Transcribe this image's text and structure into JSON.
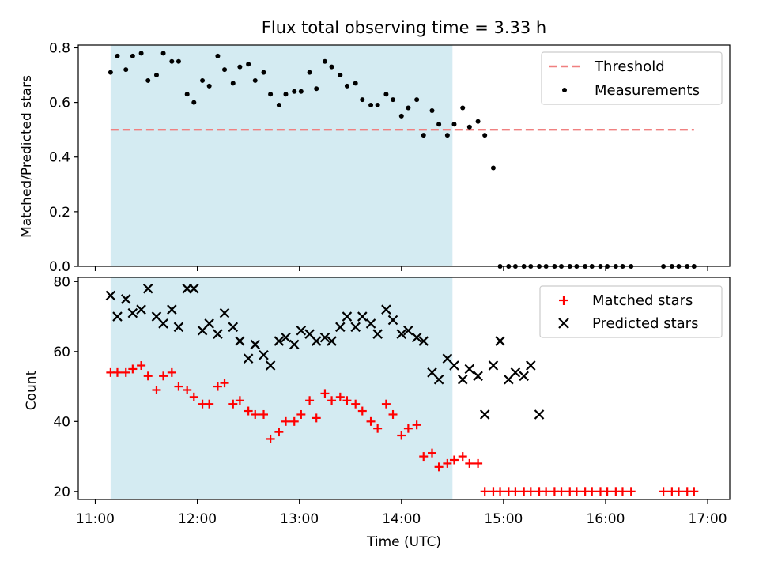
{
  "chart_data": [
    {
      "type": "scatter",
      "title": "Flux total observing time = 3.33 h",
      "ylabel": "Matched/Predicted stars",
      "xlabel": "",
      "x_ticks": [
        "11:00",
        "12:00",
        "13:00",
        "14:00",
        "15:00",
        "16:00",
        "17:00"
      ],
      "y_ticks": [
        "0.0",
        "0.2",
        "0.4",
        "0.6",
        "0.8"
      ],
      "ylim": [
        0,
        0.81
      ],
      "xlim": [
        "10:50",
        "17:13"
      ],
      "shaded_region": {
        "x0": "11:09",
        "x1": "14:30",
        "color": "#add8e6"
      },
      "threshold": {
        "name": "Threshold",
        "y": 0.5,
        "x0": "11:09",
        "x1": "16:52",
        "color": "#f08080"
      },
      "legend": "top-right",
      "series": [
        {
          "name": "Measurements",
          "color": "#000000",
          "marker": "dot",
          "x": [
            "11:09",
            "11:13",
            "11:18",
            "11:22",
            "11:27",
            "11:31",
            "11:36",
            "11:40",
            "11:45",
            "11:49",
            "11:54",
            "11:58",
            "12:03",
            "12:07",
            "12:12",
            "12:16",
            "12:21",
            "12:25",
            "12:30",
            "12:34",
            "12:39",
            "12:43",
            "12:48",
            "12:52",
            "12:57",
            "13:01",
            "13:06",
            "13:10",
            "13:15",
            "13:19",
            "13:24",
            "13:28",
            "13:33",
            "13:37",
            "13:42",
            "13:46",
            "13:51",
            "13:55",
            "14:00",
            "14:04",
            "14:09",
            "14:13",
            "14:18",
            "14:22",
            "14:27",
            "14:31",
            "14:36",
            "14:40",
            "14:45",
            "14:49",
            "14:54",
            "14:58",
            "15:03",
            "15:07",
            "15:12",
            "15:16",
            "15:21",
            "15:25",
            "15:30",
            "15:34",
            "15:39",
            "15:43",
            "15:48",
            "15:52",
            "15:57",
            "16:01",
            "16:06",
            "16:10",
            "16:15",
            "16:34",
            "16:39",
            "16:43",
            "16:48",
            "16:52"
          ],
          "y": [
            0.71,
            0.77,
            0.72,
            0.77,
            0.78,
            0.68,
            0.7,
            0.78,
            0.75,
            0.75,
            0.63,
            0.6,
            0.68,
            0.66,
            0.77,
            0.72,
            0.67,
            0.73,
            0.74,
            0.68,
            0.71,
            0.63,
            0.59,
            0.63,
            0.64,
            0.64,
            0.71,
            0.65,
            0.75,
            0.73,
            0.7,
            0.66,
            0.67,
            0.61,
            0.59,
            0.59,
            0.63,
            0.61,
            0.55,
            0.58,
            0.61,
            0.48,
            0.57,
            0.52,
            0.48,
            0.52,
            0.58,
            0.51,
            0.53,
            0.48,
            0.36,
            0.0,
            0.0,
            0.0,
            0.0,
            0.0,
            0.0,
            0.0,
            0.0,
            0.0,
            0.0,
            0.0,
            0.0,
            0.0,
            0.0,
            0.0,
            0.0,
            0.0,
            0.0,
            0.0,
            0.0,
            0.0,
            0.0,
            0.0
          ]
        }
      ]
    },
    {
      "type": "scatter",
      "title": "",
      "ylabel": "Count",
      "xlabel": "Time (UTC)",
      "x_ticks": [
        "11:00",
        "12:00",
        "13:00",
        "14:00",
        "15:00",
        "16:00",
        "17:00"
      ],
      "y_ticks": [
        "20",
        "40",
        "60",
        "80"
      ],
      "ylim": [
        17.7,
        81.2
      ],
      "xlim": [
        "10:50",
        "17:13"
      ],
      "shaded_region": {
        "x0": "11:09",
        "x1": "14:30",
        "color": "#add8e6"
      },
      "legend": "top-right",
      "series": [
        {
          "name": "Matched stars",
          "color": "#ff0000",
          "marker": "plus",
          "x": [
            "11:09",
            "11:13",
            "11:18",
            "11:22",
            "11:27",
            "11:31",
            "11:36",
            "11:40",
            "11:45",
            "11:49",
            "11:54",
            "11:58",
            "12:03",
            "12:07",
            "12:12",
            "12:16",
            "12:21",
            "12:25",
            "12:30",
            "12:34",
            "12:39",
            "12:43",
            "12:48",
            "12:52",
            "12:57",
            "13:01",
            "13:06",
            "13:10",
            "13:15",
            "13:19",
            "13:24",
            "13:28",
            "13:33",
            "13:37",
            "13:42",
            "13:46",
            "13:51",
            "13:55",
            "14:00",
            "14:04",
            "14:09",
            "14:13",
            "14:18",
            "14:22",
            "14:27",
            "14:31",
            "14:36",
            "14:40",
            "14:45",
            "14:49",
            "14:54",
            "14:58",
            "15:03",
            "15:07",
            "15:12",
            "15:16",
            "15:21",
            "15:25",
            "15:30",
            "15:34",
            "15:39",
            "15:43",
            "15:48",
            "15:52",
            "15:57",
            "16:01",
            "16:06",
            "16:10",
            "16:15",
            "16:34",
            "16:39",
            "16:43",
            "16:48",
            "16:52"
          ],
          "y": [
            54,
            54,
            54,
            55,
            56,
            53,
            49,
            53,
            54,
            50,
            49,
            47,
            45,
            45,
            50,
            51,
            45,
            46,
            43,
            42,
            42,
            35,
            37,
            40,
            40,
            42,
            46,
            41,
            48,
            46,
            47,
            46,
            45,
            43,
            40,
            38,
            45,
            42,
            36,
            38,
            39,
            30,
            31,
            27,
            28,
            29,
            30,
            28,
            28,
            20,
            20,
            20,
            20,
            20,
            20,
            20,
            20,
            20,
            20,
            20,
            20,
            20,
            20,
            20,
            20,
            20,
            20,
            20,
            20,
            20,
            20,
            20,
            20,
            20
          ]
        },
        {
          "name": "Predicted stars",
          "color": "#000000",
          "marker": "x",
          "x": [
            "11:09",
            "11:13",
            "11:18",
            "11:22",
            "11:27",
            "11:31",
            "11:36",
            "11:40",
            "11:45",
            "11:49",
            "11:54",
            "11:58",
            "12:03",
            "12:07",
            "12:12",
            "12:16",
            "12:21",
            "12:25",
            "12:30",
            "12:34",
            "12:39",
            "12:43",
            "12:48",
            "12:52",
            "12:57",
            "13:01",
            "13:06",
            "13:10",
            "13:15",
            "13:19",
            "13:24",
            "13:28",
            "13:33",
            "13:37",
            "13:42",
            "13:46",
            "13:51",
            "13:55",
            "14:00",
            "14:04",
            "14:09",
            "14:13",
            "14:18",
            "14:22",
            "14:27",
            "14:31",
            "14:36",
            "14:40",
            "14:45",
            "14:49",
            "14:54",
            "14:58",
            "15:03",
            "15:07",
            "15:12",
            "15:16",
            "15:21"
          ],
          "y": [
            76,
            70,
            75,
            71,
            72,
            78,
            70,
            68,
            72,
            67,
            78,
            78,
            66,
            68,
            65,
            71,
            67,
            63,
            58,
            62,
            59,
            56,
            63,
            64,
            62,
            66,
            65,
            63,
            64,
            63,
            67,
            70,
            67,
            70,
            68,
            65,
            72,
            69,
            65,
            66,
            64,
            63,
            54,
            52,
            58,
            56,
            52,
            55,
            53,
            42,
            56,
            63,
            52,
            54,
            53,
            56,
            42
          ]
        }
      ]
    }
  ]
}
